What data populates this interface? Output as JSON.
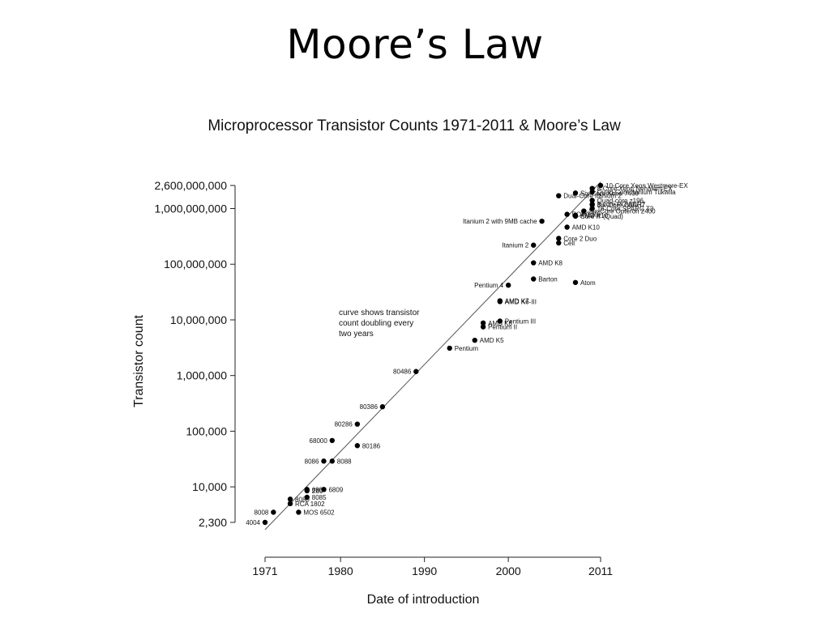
{
  "slide": {
    "title": "Moore’s Law"
  },
  "chart_data": {
    "type": "scatter",
    "title": "Microprocessor Transistor Counts 1971-2011 & Moore’s Law",
    "xlabel": "Date of introduction",
    "ylabel": "Transistor count",
    "y_scale": "log",
    "xlim": [
      1971,
      2011
    ],
    "ylim": [
      2300,
      2600000000
    ],
    "x_ticks": [
      1971,
      1980,
      1990,
      2000,
      2011
    ],
    "y_ticks": [
      {
        "value": 2300,
        "label": "2,300"
      },
      {
        "value": 10000,
        "label": "10,000"
      },
      {
        "value": 100000,
        "label": "100,000"
      },
      {
        "value": 1000000,
        "label": "1,000,000"
      },
      {
        "value": 10000000,
        "label": "10,000,000"
      },
      {
        "value": 100000000,
        "label": "100,000,000"
      },
      {
        "value": 1000000000,
        "label": "1,000,000,000"
      },
      {
        "value": 2600000000,
        "label": "2,600,000,000"
      }
    ],
    "trend_line": {
      "from": {
        "x": 1971,
        "y": 1700
      },
      "to": {
        "x": 2011,
        "y": 3000000000
      }
    },
    "annotation": [
      "curve shows transistor",
      "count doubling every",
      "two years"
    ],
    "points": [
      {
        "label": "4004",
        "x": 1971.0,
        "y": 2300,
        "side": "left"
      },
      {
        "label": "8008",
        "x": 1972.0,
        "y": 3500,
        "side": "left"
      },
      {
        "label": "RCA 1802",
        "x": 1974.0,
        "y": 5000
      },
      {
        "label": "8080",
        "x": 1974.0,
        "y": 6000
      },
      {
        "label": "MOS 6502",
        "x": 1975.0,
        "y": 3500
      },
      {
        "label": "8085",
        "x": 1976.0,
        "y": 6500
      },
      {
        "label": "6800",
        "x": 1976.0,
        "y": 9000
      },
      {
        "label": "Z80",
        "x": 1976.0,
        "y": 8500,
        "side": "right"
      },
      {
        "label": "6809",
        "x": 1978.0,
        "y": 9000,
        "side": "right"
      },
      {
        "label": "8086",
        "x": 1978.0,
        "y": 29000,
        "side": "left"
      },
      {
        "label": "8088",
        "x": 1979.0,
        "y": 29000,
        "side": "right"
      },
      {
        "label": "68000",
        "x": 1979.0,
        "y": 68000,
        "side": "left"
      },
      {
        "label": "80186",
        "x": 1982.0,
        "y": 55000,
        "side": "right"
      },
      {
        "label": "80286",
        "x": 1982.0,
        "y": 134000,
        "side": "left"
      },
      {
        "label": "80386",
        "x": 1985.0,
        "y": 275000,
        "side": "left"
      },
      {
        "label": "80486",
        "x": 1989.0,
        "y": 1180000,
        "side": "left"
      },
      {
        "label": "Pentium",
        "x": 1993.0,
        "y": 3100000,
        "side": "right"
      },
      {
        "label": "AMD K5",
        "x": 1996.0,
        "y": 4300000,
        "side": "right"
      },
      {
        "label": "Pentium II",
        "x": 1997.0,
        "y": 7500000,
        "side": "right"
      },
      {
        "label": "AMD K6",
        "x": 1997.0,
        "y": 8800000
      },
      {
        "label": "Pentium III",
        "x": 1999.0,
        "y": 9500000,
        "side": "right"
      },
      {
        "label": "AMD K6-III",
        "x": 1999.0,
        "y": 21300000
      },
      {
        "label": "AMD K7",
        "x": 1999.0,
        "y": 22000000
      },
      {
        "label": "Pentium 4",
        "x": 2000.0,
        "y": 42000000,
        "side": "left"
      },
      {
        "label": "Barton",
        "x": 2003.0,
        "y": 54300000,
        "side": "right"
      },
      {
        "label": "Atom",
        "x": 2008.0,
        "y": 47000000,
        "side": "right"
      },
      {
        "label": "AMD K8",
        "x": 2003.0,
        "y": 105900000,
        "side": "right"
      },
      {
        "label": "Itanium 2",
        "x": 2003.0,
        "y": 220000000,
        "side": "left"
      },
      {
        "label": "Cell",
        "x": 2006.0,
        "y": 241000000
      },
      {
        "label": "Core 2 Duo",
        "x": 2006.0,
        "y": 291000000
      },
      {
        "label": "Itanium 2 with 9MB cache",
        "x": 2004.0,
        "y": 592000000,
        "side": "left"
      },
      {
        "label": "AMD K10",
        "x": 2007.0,
        "y": 463000000
      },
      {
        "label": "Core i7 (Quad)",
        "x": 2008.0,
        "y": 731000000
      },
      {
        "label": "POWER6",
        "x": 2007.0,
        "y": 789000000
      },
      {
        "label": "AMD K10",
        "x": 2008.0,
        "y": 758000000
      },
      {
        "label": "Six-Core Opteron 2400",
        "x": 2009.0,
        "y": 904000000
      },
      {
        "label": "Dual-Core Itanium 2",
        "x": 2006.0,
        "y": 1700000000
      },
      {
        "label": "Six-Core Xeon 7400",
        "x": 2008.0,
        "y": 1900000000
      },
      {
        "label": "8-Core Xeon Nehalem-EX",
        "x": 2010.0,
        "y": 2300000000
      },
      {
        "label": "Quad-Core Itanium Tukwila",
        "x": 2010.0,
        "y": 2000000000
      },
      {
        "label": "Quad-core z196",
        "x": 2010.0,
        "y": 1400000000
      },
      {
        "label": "8-core POWER7",
        "x": 2010.0,
        "y": 1200000000
      },
      {
        "label": "10-Core Xeon Westmere-EX",
        "x": 2011.0,
        "y": 2600000000
      },
      {
        "label": "Six-Core Core i7",
        "x": 2010.0,
        "y": 1170000000
      },
      {
        "label": "16-Core SPARC T3",
        "x": 2010.0,
        "y": 1000000000
      }
    ]
  }
}
